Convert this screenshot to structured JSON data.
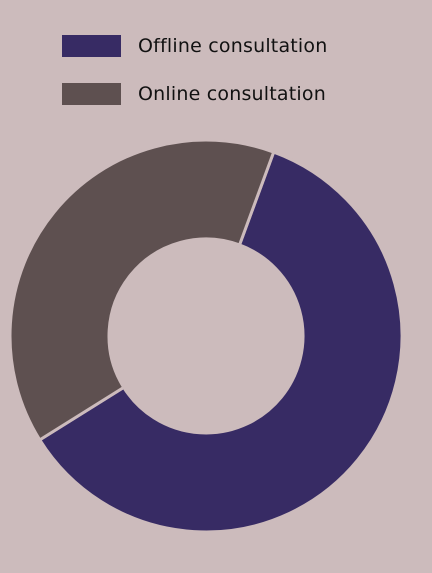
{
  "chart_data": {
    "type": "pie",
    "donut": true,
    "title": "",
    "categories": [
      "Offline consultation",
      "Online consultation"
    ],
    "values": [
      60.5,
      39.5
    ],
    "colors": [
      "#372b64",
      "#5e5050"
    ],
    "legend": {
      "position": "top-left",
      "items": [
        {
          "label": "Offline consultation",
          "color": "#372b64"
        },
        {
          "label": "Online consultation",
          "color": "#5e5050"
        }
      ]
    }
  }
}
